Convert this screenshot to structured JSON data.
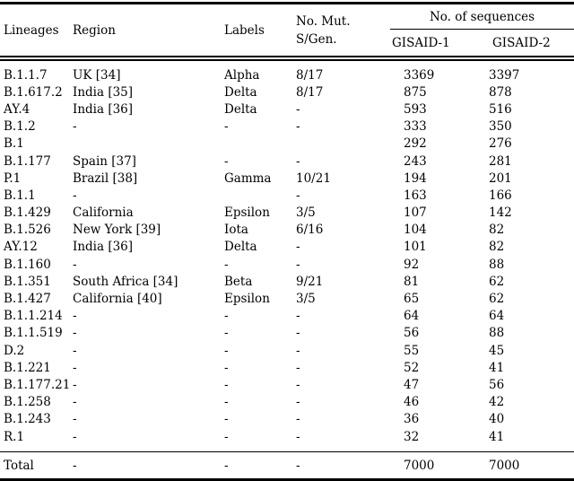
{
  "colors": {
    "background": "#ffffff",
    "text": "#000000",
    "rule": "#000000"
  },
  "table": {
    "header": {
      "lineages": "Lineages",
      "region": "Region",
      "labels": "Labels",
      "no_mut_line1": "No. Mut.",
      "no_mut_line2": "S/Gen.",
      "sequences_group": "No. of sequences",
      "gisaid1": "GISAID-1",
      "gisaid2": "GISAID-2"
    },
    "rows": [
      [
        "B.1.1.7",
        "UK [34]",
        "Alpha",
        "8/17",
        "3369",
        "3397"
      ],
      [
        "B.1.617.2",
        "India [35]",
        "Delta",
        "8/17",
        "875",
        "878"
      ],
      [
        "AY.4",
        "India [36]",
        "Delta",
        "-",
        "593",
        "516"
      ],
      [
        "B.1.2",
        "-",
        "-",
        "-",
        "333",
        "350"
      ],
      [
        "B.1",
        "",
        "",
        "",
        "292",
        "276"
      ],
      [
        "B.1.177",
        "Spain [37]",
        "-",
        "-",
        "243",
        "281"
      ],
      [
        "P.1",
        "Brazil [38]",
        "Gamma",
        "10/21",
        "194",
        "201"
      ],
      [
        "B.1.1",
        "-",
        "",
        "-",
        "163",
        "166"
      ],
      [
        "B.1.429",
        "California",
        "Epsilon",
        "3/5",
        "107",
        "142"
      ],
      [
        "B.1.526",
        "New York [39]",
        "Iota",
        "6/16",
        "104",
        "82"
      ],
      [
        "AY.12",
        "India [36]",
        "Delta",
        "-",
        "101",
        "82"
      ],
      [
        "B.1.160",
        "-",
        "-",
        "-",
        "92",
        "88"
      ],
      [
        "B.1.351",
        "South Africa [34]",
        "Beta",
        "9/21",
        "81",
        "62"
      ],
      [
        "B.1.427",
        "California [40]",
        "Epsilon",
        "3/5",
        "65",
        "62"
      ],
      [
        "B.1.1.214",
        "-",
        "-",
        "-",
        "64",
        "64"
      ],
      [
        "B.1.1.519",
        "-",
        "-",
        "-",
        "56",
        "88"
      ],
      [
        "D.2",
        "-",
        "-",
        "-",
        "55",
        "45"
      ],
      [
        "B.1.221",
        "-",
        "-",
        "-",
        "52",
        "41"
      ],
      [
        "B.1.177.21",
        "-",
        "-",
        "-",
        "47",
        "56"
      ],
      [
        "B.1.258",
        "-",
        "-",
        "-",
        "46",
        "42"
      ],
      [
        "B.1.243",
        "-",
        "-",
        "-",
        "36",
        "40"
      ],
      [
        "R.1",
        "-",
        "-",
        "-",
        "32",
        "41"
      ]
    ],
    "total_row": [
      "Total",
      "-",
      "-",
      "-",
      "7000",
      "7000"
    ]
  }
}
